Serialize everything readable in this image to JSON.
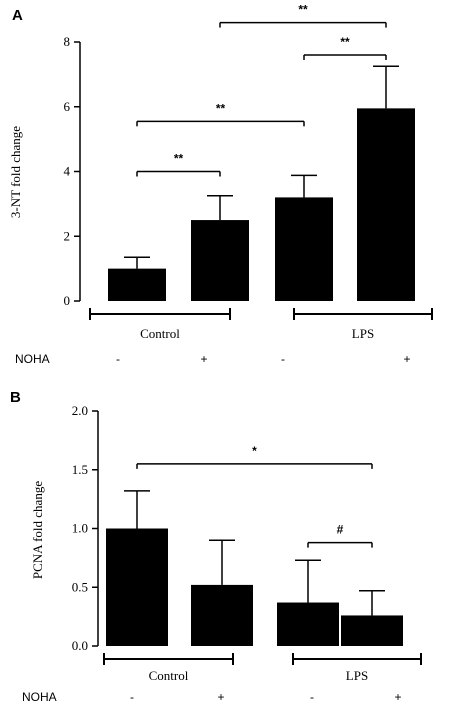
{
  "chart_data": [
    {
      "type": "bar",
      "panel": "A",
      "ylabel": "3-NT fold change",
      "ylim": [
        0,
        8
      ],
      "yticks": [
        0,
        2,
        4,
        6,
        8
      ],
      "ytick_labels": [
        "0",
        "2",
        "4",
        "6",
        "8"
      ],
      "values": [
        1.0,
        2.5,
        3.2,
        5.95
      ],
      "errors": [
        0.35,
        0.75,
        0.68,
        1.3
      ],
      "bar_color": "#000000",
      "groups": [
        {
          "label": "Control",
          "bars": [
            0,
            1
          ]
        },
        {
          "label": "LPS",
          "bars": [
            2,
            3
          ]
        }
      ],
      "treatment": {
        "label": "NOHA",
        "signs": [
          "-",
          "+",
          "-",
          "+"
        ]
      },
      "significance": [
        {
          "from": 0,
          "to": 1,
          "label": "**",
          "y": 4.0
        },
        {
          "from": 0,
          "to": 2,
          "label": "**",
          "y": 5.55
        },
        {
          "from": 2,
          "to": 3,
          "label": "**",
          "y": 7.6
        },
        {
          "from": 1,
          "to": 3,
          "label": "**",
          "y": 8.6
        }
      ]
    },
    {
      "type": "bar",
      "panel": "B",
      "ylabel": "PCNA fold change",
      "ylim": [
        0,
        2.0
      ],
      "yticks": [
        0,
        0.5,
        1.0,
        1.5,
        2.0
      ],
      "ytick_labels": [
        "0.0",
        "0.5",
        "1.0",
        "1.5",
        "2.0"
      ],
      "values": [
        1.0,
        0.52,
        0.37,
        0.26
      ],
      "errors": [
        0.32,
        0.38,
        0.36,
        0.21
      ],
      "bar_color": "#000000",
      "groups": [
        {
          "label": "Control",
          "bars": [
            0,
            1
          ]
        },
        {
          "label": "LPS",
          "bars": [
            2,
            3
          ]
        }
      ],
      "treatment": {
        "label": "NOHA",
        "signs": [
          "-",
          "+",
          "-",
          "+"
        ]
      },
      "significance": [
        {
          "from": 0,
          "to": 3,
          "label": "*",
          "y": 1.55
        },
        {
          "from": 2,
          "to": 3,
          "label": "#",
          "y": 0.88
        }
      ]
    }
  ]
}
